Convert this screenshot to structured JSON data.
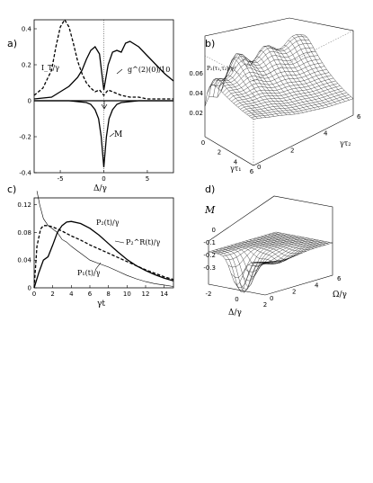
{
  "figure": {
    "panels": [
      {
        "id": "a",
        "label": "a)",
        "chart_data": {
          "type": "line",
          "xlabel": "Δ/γ",
          "xlim": [
            -8,
            8
          ],
          "ylim": [
            -0.4,
            0.45
          ],
          "xticks": [
            "-5",
            "0",
            "5"
          ],
          "yticks": [
            "0.4",
            "0.2",
            "0",
            "-0.2",
            "-0.4"
          ],
          "series": [
            {
              "name": "I_T/γ",
              "style": "dashed",
              "x": [
                -8,
                -7,
                -6,
                -5.5,
                -5,
                -4.5,
                -4,
                -3.5,
                -3,
                -2.5,
                -2,
                -1.5,
                -1,
                -0.5,
                0,
                0.5,
                1,
                1.5,
                2,
                3,
                4,
                5,
                6,
                7,
                8
              ],
              "y": [
                0.03,
                0.07,
                0.17,
                0.3,
                0.41,
                0.45,
                0.41,
                0.32,
                0.22,
                0.15,
                0.1,
                0.07,
                0.05,
                0.06,
                0.03,
                0.06,
                0.05,
                0.04,
                0.03,
                0.02,
                0.02,
                0.01,
                0.01,
                0.01,
                0.01
              ]
            },
            {
              "name": "g^(2)(0)/10",
              "style": "solid",
              "x": [
                -8,
                -6,
                -5,
                -4,
                -3,
                -2.5,
                -2,
                -1.5,
                -1,
                -0.5,
                0,
                0.5,
                1,
                1.5,
                2,
                2.5,
                3,
                4,
                5,
                6,
                7,
                8
              ],
              "y": [
                0.01,
                0.02,
                0.05,
                0.08,
                0.13,
                0.17,
                0.23,
                0.28,
                0.3,
                0.26,
                0.06,
                0.2,
                0.27,
                0.28,
                0.27,
                0.32,
                0.33,
                0.3,
                0.25,
                0.2,
                0.15,
                0.11
              ]
            },
            {
              "name": "M",
              "style": "solid",
              "x": [
                -8,
                -4,
                -2,
                -1.5,
                -1,
                -0.6,
                -0.3,
                0,
                0.3,
                0.6,
                1,
                1.5,
                2,
                4,
                8
              ],
              "y": [
                0,
                0,
                -0.01,
                -0.02,
                -0.05,
                -0.1,
                -0.2,
                -0.37,
                -0.2,
                -0.1,
                -0.05,
                -0.02,
                -0.01,
                0,
                0
              ]
            }
          ]
        }
      },
      {
        "id": "b",
        "label": "b)",
        "chart_data": {
          "type": "surface3d",
          "zlabel": "P₂(τ₁,τ₂)/γ²",
          "xlabel": "γτ₁",
          "ylabel": "γτ₂",
          "xticks": [
            "0",
            "2",
            "4",
            "6"
          ],
          "yticks": [
            "0",
            "2",
            "4",
            "6"
          ],
          "zticks": [
            "0",
            "0.02",
            "0.04",
            "0.06"
          ],
          "zlim": [
            0,
            0.06
          ]
        }
      },
      {
        "id": "c",
        "label": "c)",
        "chart_data": {
          "type": "line",
          "xlabel": "γt",
          "xlim": [
            0,
            15
          ],
          "ylim": [
            0,
            0.13
          ],
          "xticks": [
            "0",
            "2",
            "4",
            "6",
            "8",
            "10",
            "12",
            "14"
          ],
          "yticks": [
            "0",
            "0.04",
            "0.08",
            "0.12"
          ],
          "series": [
            {
              "name": "P₂^R(t)/γ",
              "style": "dashed",
              "x": [
                0,
                0.3,
                0.7,
                1,
                1.5,
                2,
                3,
                4,
                5,
                6,
                7,
                8,
                9,
                10,
                11,
                12,
                13,
                14,
                15
              ],
              "y": [
                0,
                0.06,
                0.085,
                0.09,
                0.09,
                0.088,
                0.082,
                0.075,
                0.069,
                0.062,
                0.056,
                0.05,
                0.044,
                0.038,
                0.032,
                0.026,
                0.021,
                0.016,
                0.012
              ]
            },
            {
              "name": "P₂(t)/γ",
              "style": "solid",
              "x": [
                0,
                0.5,
                1,
                1.5,
                2,
                2.5,
                3,
                3.5,
                4,
                5,
                6,
                7,
                8,
                9,
                10,
                11,
                12,
                13,
                14,
                15
              ],
              "y": [
                0,
                0.022,
                0.04,
                0.045,
                0.062,
                0.08,
                0.09,
                0.095,
                0.096,
                0.093,
                0.086,
                0.076,
                0.064,
                0.052,
                0.041,
                0.032,
                0.025,
                0.019,
                0.014,
                0.01
              ]
            },
            {
              "name": "P₁(t)/γ",
              "style": "thin",
              "x": [
                0.3,
                0.6,
                1,
                1.5,
                2,
                2.5,
                3,
                3.5,
                4,
                4.5,
                5,
                6,
                7,
                8,
                9,
                10,
                11,
                12,
                13,
                14,
                15
              ],
              "y": [
                0.14,
                0.12,
                0.1,
                0.09,
                0.085,
                0.08,
                0.07,
                0.066,
                0.06,
                0.055,
                0.05,
                0.04,
                0.035,
                0.03,
                0.024,
                0.018,
                0.013,
                0.009,
                0.006,
                0.004,
                0.002
              ]
            }
          ]
        }
      },
      {
        "id": "d",
        "label": "d)",
        "chart_data": {
          "type": "surface3d",
          "zlabel": "M",
          "xlabel": "Δ/γ",
          "ylabel": "Ω/γ",
          "xticks": [
            "-2",
            "0",
            "2"
          ],
          "yticks": [
            "0",
            "2",
            "4",
            "6"
          ],
          "zticks": [
            "0",
            "-0.1",
            "-0.2",
            "-0.3"
          ],
          "zlim": [
            -0.3,
            0
          ]
        }
      }
    ],
    "labels_a": {
      "it": "I_T/γ",
      "g2": "g^(2)(0)/10",
      "m": "M"
    },
    "labels_c": {
      "p2": "P₂(t)/γ",
      "p2r": "P₂^R(t)/γ",
      "p1": "P₁(t)/γ"
    }
  }
}
